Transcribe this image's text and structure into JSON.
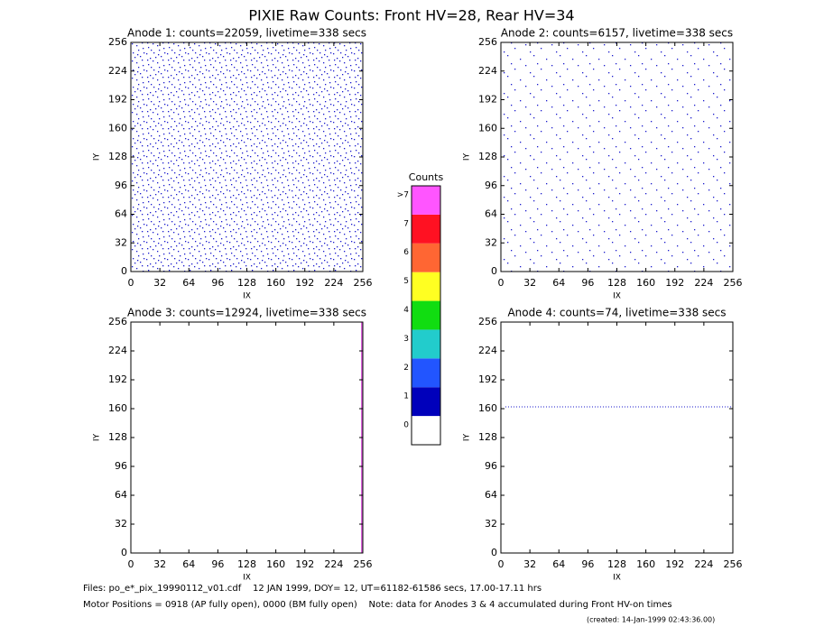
{
  "title": "PIXIE Raw Counts:  Front HV=28, Rear HV=34",
  "chart_data": [
    {
      "type": "image",
      "title": "Anode 1: counts=22059, livetime=338 secs",
      "xlabel": "IX",
      "ylabel": "IY",
      "xlim": [
        0,
        256
      ],
      "ylim": [
        0,
        256
      ],
      "xticks": [
        0,
        32,
        64,
        96,
        128,
        160,
        192,
        224,
        256
      ],
      "yticks": [
        0,
        32,
        64,
        96,
        128,
        160,
        192,
        224,
        256
      ]
    },
    {
      "type": "image",
      "title": "Anode 2: counts=6157, livetime=338 secs",
      "xlabel": "IX",
      "ylabel": "IY",
      "xlim": [
        0,
        256
      ],
      "ylim": [
        0,
        256
      ],
      "xticks": [
        0,
        32,
        64,
        96,
        128,
        160,
        192,
        224,
        256
      ],
      "yticks": [
        0,
        32,
        64,
        96,
        128,
        160,
        192,
        224,
        256
      ]
    },
    {
      "type": "image",
      "title": "Anode 3: counts=12924, livetime=338 secs",
      "xlabel": "IX",
      "ylabel": "IY",
      "xlim": [
        0,
        256
      ],
      "ylim": [
        0,
        256
      ],
      "xticks": [
        0,
        32,
        64,
        96,
        128,
        160,
        192,
        224,
        256
      ],
      "yticks": [
        0,
        32,
        64,
        96,
        128,
        160,
        192,
        224,
        256
      ]
    },
    {
      "type": "image",
      "title": "Anode 4: counts=74, livetime=338 secs",
      "xlabel": "IX",
      "ylabel": "IY",
      "xlim": [
        0,
        256
      ],
      "ylim": [
        0,
        256
      ],
      "xticks": [
        0,
        32,
        64,
        96,
        128,
        160,
        192,
        224,
        256
      ],
      "yticks": [
        0,
        32,
        64,
        96,
        128,
        160,
        192,
        224,
        256
      ]
    }
  ],
  "colorbar": {
    "title": "Counts",
    "labels": [
      0,
      1,
      2,
      3,
      4,
      5,
      6,
      7,
      ">7"
    ],
    "colors": [
      "#ffffff",
      "#0000bb",
      "#2255ff",
      "#22cccc",
      "#11dd11",
      "#ffff22",
      "#ff6633",
      "#ff1122",
      "#ff55ff"
    ]
  },
  "footer": [
    "Files: po_e*_pix_19990112_v01.cdf    12 JAN 1999, DOY= 12, UT=61182-61586 secs, 17.00-17.11 hrs",
    "Motor Positions = 0918 (AP fully open), 0000 (BM fully open)    Note: data for Anodes 3 & 4 accumulated during Front HV-on times",
    "(created: 14-Jan-1999 02:43:36.00)"
  ]
}
